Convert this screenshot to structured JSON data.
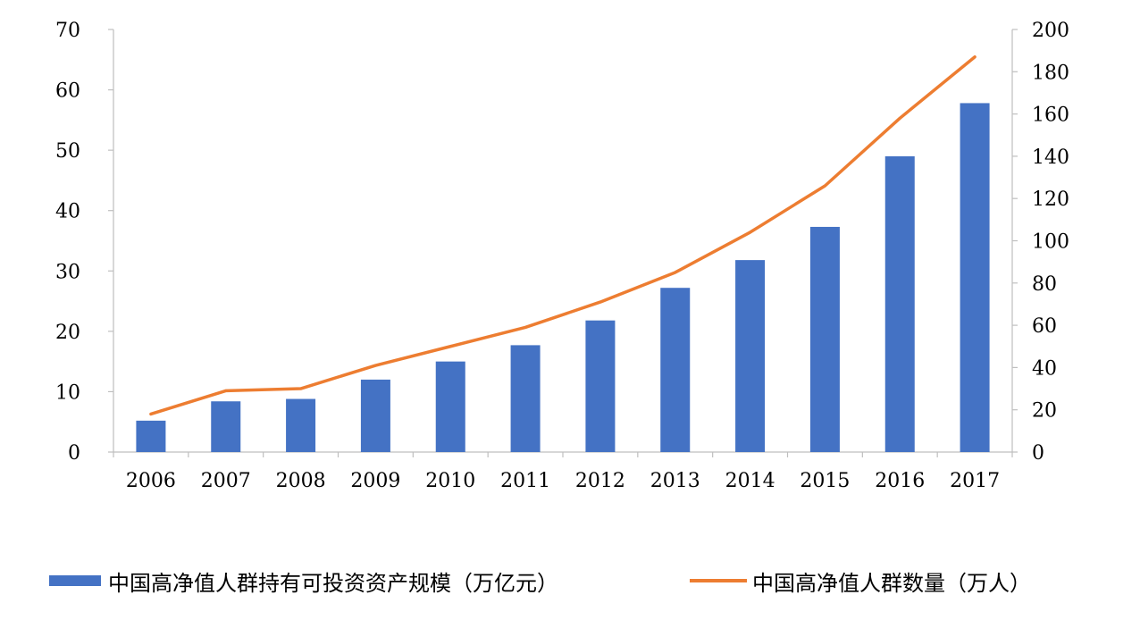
{
  "chart_data": {
    "type": "bar+line",
    "categories": [
      "2006",
      "2007",
      "2008",
      "2009",
      "2010",
      "2011",
      "2012",
      "2013",
      "2014",
      "2015",
      "2016",
      "2017"
    ],
    "series": [
      {
        "name": "中国高净值人群持有可投资资产规模（万亿元）",
        "type": "bar",
        "axis": "left",
        "color": "#4472C4",
        "values": [
          5.2,
          8.4,
          8.8,
          12,
          15,
          17.7,
          21.8,
          27.2,
          31.8,
          37.3,
          49,
          57.8
        ]
      },
      {
        "name": "中国高净值人群数量（万人）",
        "type": "line",
        "axis": "right",
        "color": "#ED7D31",
        "values": [
          18,
          29,
          30,
          41,
          50,
          59,
          71,
          85,
          104,
          126,
          158,
          187
        ]
      }
    ],
    "y_left": {
      "min": 0,
      "max": 70,
      "ticks": [
        "0",
        "10",
        "20",
        "30",
        "40",
        "50",
        "60",
        "70"
      ]
    },
    "y_right": {
      "min": 0,
      "max": 200,
      "ticks": [
        "0",
        "20",
        "40",
        "60",
        "80",
        "100",
        "120",
        "140",
        "160",
        "180",
        "200"
      ]
    },
    "grid": false,
    "legend_position": "bottom"
  }
}
